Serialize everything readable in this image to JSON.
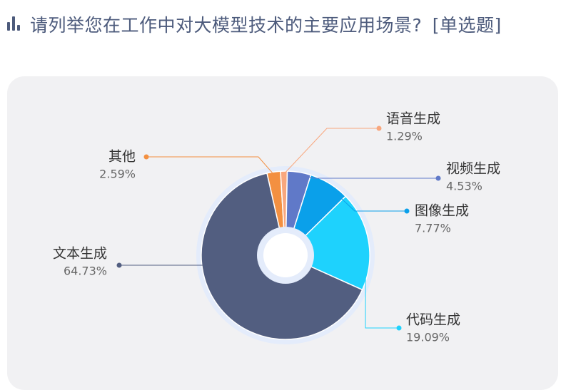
{
  "header": {
    "question": "请列举您在工作中对大模型技术的主要应用场景?",
    "question_type": "[单选题]",
    "icon": "bar-chart-icon"
  },
  "chart_data": {
    "type": "pie",
    "donut": true,
    "title": "",
    "slices": [
      {
        "label": "其他",
        "value": 2.59,
        "value_label": "2.59%",
        "color": "#f39041"
      },
      {
        "label": "语音生成",
        "value": 1.29,
        "value_label": "1.29%",
        "color": "#f8a77e"
      },
      {
        "label": "视频生成",
        "value": 4.53,
        "value_label": "4.53%",
        "color": "#6079c8"
      },
      {
        "label": "图像生成",
        "value": 7.77,
        "value_label": "7.77%",
        "color": "#0aa0ea"
      },
      {
        "label": "代码生成",
        "value": 19.09,
        "value_label": "19.09%",
        "color": "#1ed2fd"
      },
      {
        "label": "文本生成",
        "value": 64.73,
        "value_label": "64.73%",
        "color": "#525e80"
      }
    ]
  }
}
